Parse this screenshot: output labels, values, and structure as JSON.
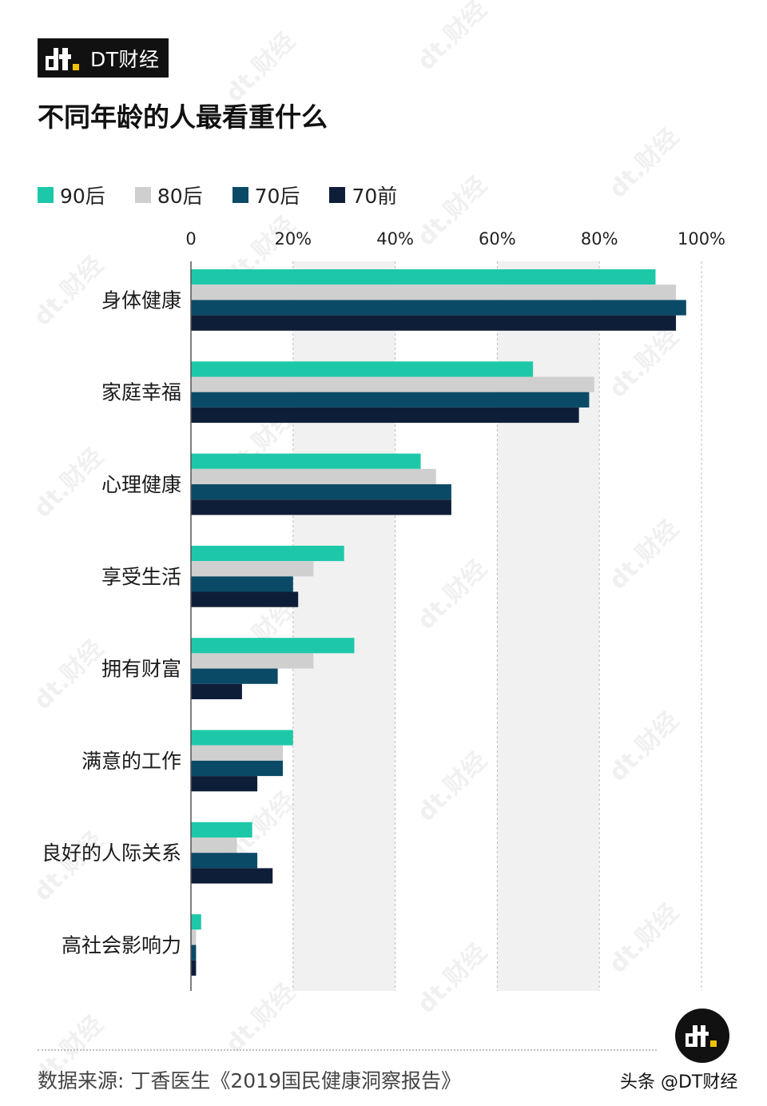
{
  "brand": {
    "logo_icon": "dt-logo-icon",
    "name": "DT财经"
  },
  "title": "不同年龄的人最看重什么",
  "colors": {
    "s90": "#1dc8a9",
    "s80": "#cfcfcf",
    "s70": "#0b4a66",
    "s70pre": "#0f1e38",
    "band": "#f1f1f1",
    "axis": "#555555"
  },
  "chart_data": {
    "type": "bar",
    "orientation": "horizontal",
    "title": "不同年龄的人最看重什么",
    "categories": [
      "身体健康",
      "家庭幸福",
      "心理健康",
      "享受生活",
      "拥有财富",
      "满意的工作",
      "良好的人际关系",
      "高社会影响力"
    ],
    "series": [
      {
        "name": "90后",
        "color": "#1dc8a9",
        "values": [
          91,
          67,
          45,
          30,
          32,
          20,
          12,
          2
        ]
      },
      {
        "name": "80后",
        "color": "#cfcfcf",
        "values": [
          95,
          79,
          48,
          24,
          24,
          18,
          9,
          1
        ]
      },
      {
        "name": "70后",
        "color": "#0b4a66",
        "values": [
          97,
          78,
          51,
          20,
          17,
          18,
          13,
          1
        ]
      },
      {
        "name": "70前",
        "color": "#0f1e38",
        "values": [
          95,
          76,
          51,
          21,
          10,
          13,
          16,
          1
        ]
      }
    ],
    "x_ticks": [
      "0",
      "20%",
      "40%",
      "60%",
      "80%",
      "100%"
    ],
    "xlim": [
      0,
      100
    ],
    "x_axis_position": "top",
    "grid": true,
    "legend_position": "top-left"
  },
  "footer": {
    "source": "数据来源: 丁香医生《2019国民健康洞察报告》",
    "credit": "头条 @DT财经",
    "logo_icon": "dt-logo-icon"
  },
  "watermark": "dt.财经"
}
